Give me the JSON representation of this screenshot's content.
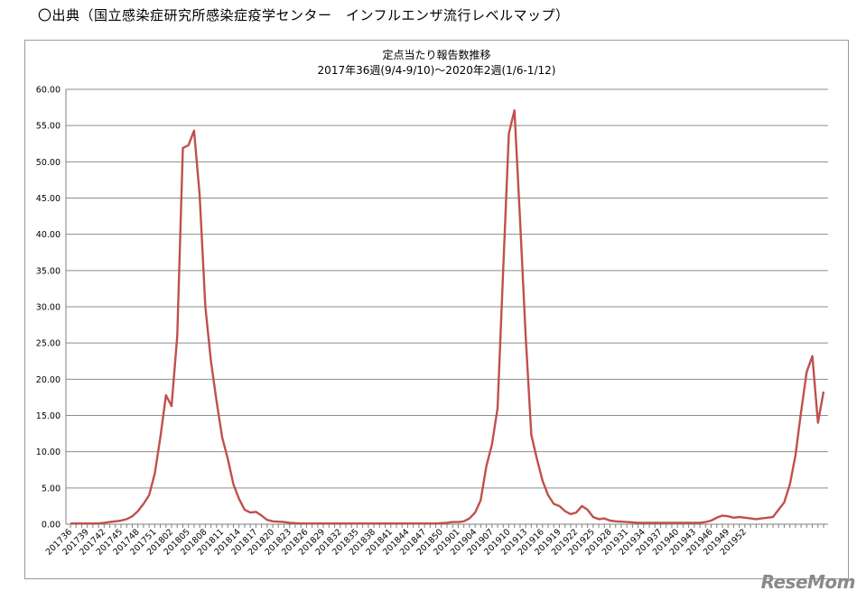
{
  "header": {
    "source_text": "〇出典（国立感染症研究所感染症疫学センター　インフルエンザ流行レベルマップ）"
  },
  "watermark": {
    "logo_text": "ReseMom"
  },
  "chart_data": {
    "type": "line",
    "title": "定点当たり報告数推移",
    "subtitle": "2017年36週(9/4-9/10)〜2020年2週(1/6-1/12)",
    "xlabel": "",
    "ylabel": "",
    "ylim": [
      0,
      60
    ],
    "y_ticks": [
      "0.00",
      "5.00",
      "10.00",
      "15.00",
      "20.00",
      "25.00",
      "30.00",
      "35.00",
      "40.00",
      "45.00",
      "50.00",
      "55.00",
      "60.00"
    ],
    "grid": true,
    "series_color": "#c0504d",
    "x_tick_labels": [
      "201736",
      "201739",
      "201742",
      "201745",
      "201748",
      "201751",
      "201802",
      "201805",
      "201808",
      "201811",
      "201814",
      "201817",
      "201820",
      "201823",
      "201826",
      "201829",
      "201832",
      "201835",
      "201838",
      "201841",
      "201844",
      "201847",
      "201850",
      "201901",
      "201904",
      "201907",
      "201910",
      "201913",
      "201916",
      "201919",
      "201922",
      "201925",
      "201928",
      "201931",
      "201934",
      "201937",
      "201940",
      "201943",
      "201946",
      "201949",
      "201952"
    ],
    "values": [
      0.1,
      0.1,
      0.1,
      0.1,
      0.1,
      0.1,
      0.2,
      0.3,
      0.4,
      0.5,
      0.7,
      1.1,
      1.8,
      2.8,
      4.0,
      7.0,
      12.0,
      17.8,
      16.3,
      26.0,
      51.9,
      52.3,
      54.3,
      45.4,
      30.0,
      22.5,
      17.0,
      12.0,
      9.0,
      5.5,
      3.5,
      2.0,
      1.6,
      1.7,
      1.2,
      0.6,
      0.4,
      0.35,
      0.3,
      0.2,
      0.15,
      0.1,
      0.1,
      0.1,
      0.1,
      0.1,
      0.1,
      0.1,
      0.1,
      0.1,
      0.1,
      0.1,
      0.1,
      0.1,
      0.1,
      0.1,
      0.1,
      0.1,
      0.1,
      0.1,
      0.1,
      0.1,
      0.1,
      0.1,
      0.1,
      0.1,
      0.15,
      0.2,
      0.3,
      0.3,
      0.4,
      0.8,
      1.6,
      3.3,
      8.0,
      11.0,
      16.0,
      35.0,
      53.9,
      57.1,
      42.0,
      26.0,
      12.3,
      9.0,
      6.0,
      4.0,
      2.8,
      2.5,
      1.8,
      1.4,
      1.6,
      2.5,
      2.0,
      1.0,
      0.7,
      0.8,
      0.5,
      0.4,
      0.35,
      0.3,
      0.25,
      0.2,
      0.2,
      0.2,
      0.2,
      0.2,
      0.2,
      0.2,
      0.2,
      0.2,
      0.2,
      0.2,
      0.2,
      0.3,
      0.5,
      0.9,
      1.2,
      1.1,
      0.9,
      1.0,
      0.9,
      0.8,
      0.7,
      0.8,
      0.9,
      1.0,
      2.0,
      3.0,
      5.5,
      9.5,
      15.5,
      21.0,
      23.2,
      14.0,
      18.3
    ]
  }
}
